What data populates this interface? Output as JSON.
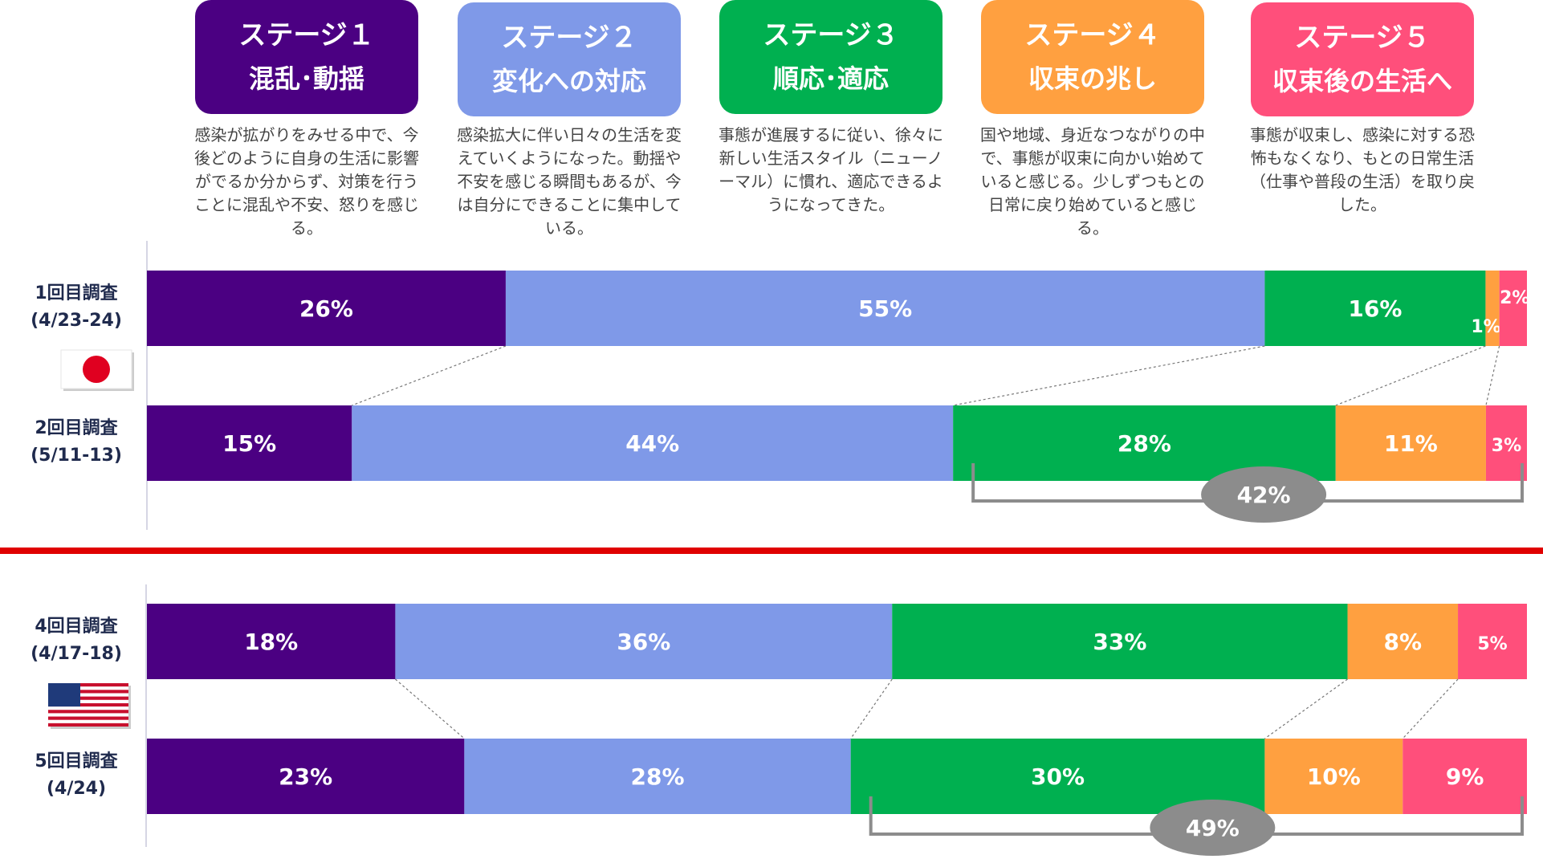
{
  "stages": [
    {
      "name": "ステージ１",
      "sub": "混乱･動揺",
      "color": "#4b0082",
      "desc": "感染が拡がりをみせる中で、今後どのように自身の生活に影響がでるか分からず、対策を行うことに混乱や不安、怒りを感じる。"
    },
    {
      "name": "ステージ２",
      "sub": "変化への対応",
      "color": "#7f99e8",
      "desc": "感染拡大に伴い日々の生活を変えていくようになった。動揺や不安を感じる瞬間もあるが、今は自分にできることに集中している。"
    },
    {
      "name": "ステージ３",
      "sub": "順応･適応",
      "color": "#00b050",
      "desc": "事態が進展するに従い、徐々に新しい生活スタイル（ニューノーマル）に慣れ、適応できるようになってきた。"
    },
    {
      "name": "ステージ４",
      "sub": "収束の兆し",
      "color": "#ffa040",
      "desc": "国や地域、身近なつながりの中で、事態が収束に向かい始めていると感じる。少しずつもとの日常に戻り始めていると感じる。"
    },
    {
      "name": "ステージ５",
      "sub": "収束後の生活へ",
      "color": "#ff4f7b",
      "desc": "事態が収束し、感染に対する恐怖もなくなり、もとの日常生活（仕事や普段の生活）を取り戻した。"
    }
  ],
  "chart_data": {
    "type": "bar",
    "orientation": "horizontal",
    "stacked": true,
    "unit": "%",
    "categories": [
      "ステージ１",
      "ステージ２",
      "ステージ３",
      "ステージ４",
      "ステージ５"
    ],
    "groups": [
      {
        "flag": "japan-flag-icon",
        "rows": [
          {
            "label1": "1回目調査",
            "label2": "(4/23-24)",
            "values": [
              26,
              55,
              16,
              1,
              2
            ]
          },
          {
            "label1": "2回目調査",
            "label2": "(5/11-13)",
            "values": [
              15,
              44,
              28,
              11,
              3
            ],
            "bracket": {
              "from_stage": 3,
              "to_stage": 5,
              "label": "42%"
            }
          }
        ]
      },
      {
        "flag": "usa-flag-icon",
        "rows": [
          {
            "label1": "4回目調査",
            "label2": "(4/17-18)",
            "values": [
              18,
              36,
              33,
              8,
              5
            ]
          },
          {
            "label1": "5回目調査",
            "label2": "(4/24)",
            "values": [
              23,
              28,
              30,
              10,
              9
            ],
            "bracket": {
              "from_stage": 3,
              "to_stage": 5,
              "label": "49%"
            }
          }
        ]
      }
    ],
    "divider_color": "#e00000",
    "bracket_color": "#8c8c8c"
  }
}
